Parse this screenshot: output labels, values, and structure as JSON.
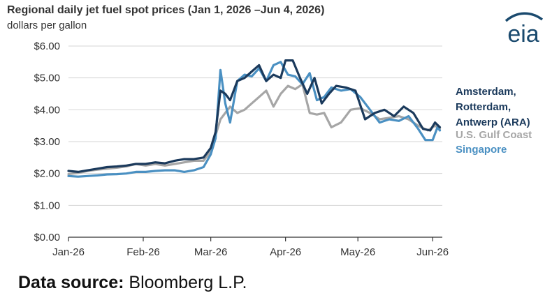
{
  "header": {
    "title": "Regional  daily jet  fuel spot prices (Jan 1, 2026  –Jun 4, 2026)",
    "subtitle": "dollars per gallon"
  },
  "logo": {
    "text": "eia",
    "icon": "eia-logo",
    "color": "#1a4a6e"
  },
  "legend": {
    "ara_lines": [
      "Amsterdam,",
      "Rotterdam,",
      "Antwerp (ARA)"
    ],
    "gulf": "U.S. Gulf Coast",
    "singapore": "Singapore"
  },
  "footer": {
    "label": "Data source:",
    "value": "Bloomberg L.P."
  },
  "chart_data": {
    "type": "line",
    "ylabel": "dollars per gallon",
    "ylim": [
      0,
      6
    ],
    "yticks": [
      0,
      1,
      2,
      3,
      4,
      5,
      6
    ],
    "ytick_labels": [
      "$0.00",
      "$1.00",
      "$2.00",
      "$3.00",
      "$4.00",
      "$5.00",
      "$6.00"
    ],
    "xlim": [
      "2026-01-01",
      "2026-06-05"
    ],
    "xticks": [
      "2026-01-01",
      "2026-02-01",
      "2026-03-01",
      "2026-04-01",
      "2026-05-01",
      "2026-06-01"
    ],
    "xtick_labels": [
      "Jan-26",
      "Feb-26",
      "Mar-26",
      "Apr-26",
      "May-26",
      "Jun-26"
    ],
    "grid": "horizontal",
    "legend": "right",
    "series": [
      {
        "name": "U.S. Gulf Coast",
        "color": "#a6a6a6",
        "x": [
          "2026-01-01",
          "2026-01-05",
          "2026-01-09",
          "2026-01-13",
          "2026-01-17",
          "2026-01-21",
          "2026-01-25",
          "2026-01-29",
          "2026-02-02",
          "2026-02-06",
          "2026-02-10",
          "2026-02-14",
          "2026-02-18",
          "2026-02-22",
          "2026-02-26",
          "2026-03-01",
          "2026-03-03",
          "2026-03-05",
          "2026-03-07",
          "2026-03-09",
          "2026-03-12",
          "2026-03-15",
          "2026-03-18",
          "2026-03-21",
          "2026-03-24",
          "2026-03-27",
          "2026-03-30",
          "2026-04-02",
          "2026-04-05",
          "2026-04-08",
          "2026-04-11",
          "2026-04-14",
          "2026-04-17",
          "2026-04-20",
          "2026-04-24",
          "2026-04-28",
          "2026-05-02",
          "2026-05-06",
          "2026-05-10",
          "2026-05-14",
          "2026-05-18",
          "2026-05-22",
          "2026-05-26",
          "2026-05-30",
          "2026-06-02",
          "2026-06-04"
        ],
        "values": [
          1.98,
          2.02,
          2.08,
          2.12,
          2.15,
          2.18,
          2.22,
          2.3,
          2.25,
          2.3,
          2.25,
          2.3,
          2.35,
          2.4,
          2.4,
          2.7,
          3.2,
          3.7,
          3.9,
          4.1,
          3.9,
          4.0,
          4.2,
          4.4,
          4.6,
          4.1,
          4.5,
          4.75,
          4.65,
          4.8,
          3.9,
          3.85,
          3.9,
          3.45,
          3.6,
          4.0,
          4.05,
          3.9,
          3.7,
          3.75,
          3.8,
          3.7,
          3.5,
          3.35,
          3.5,
          3.4
        ]
      },
      {
        "name": "Singapore",
        "color": "#4a90c2",
        "x": [
          "2026-01-01",
          "2026-01-05",
          "2026-01-09",
          "2026-01-13",
          "2026-01-17",
          "2026-01-21",
          "2026-01-25",
          "2026-01-29",
          "2026-02-02",
          "2026-02-06",
          "2026-02-10",
          "2026-02-14",
          "2026-02-18",
          "2026-02-22",
          "2026-02-26",
          "2026-03-01",
          "2026-03-03",
          "2026-03-05",
          "2026-03-07",
          "2026-03-09",
          "2026-03-12",
          "2026-03-15",
          "2026-03-18",
          "2026-03-21",
          "2026-03-24",
          "2026-03-27",
          "2026-03-30",
          "2026-04-02",
          "2026-04-05",
          "2026-04-08",
          "2026-04-11",
          "2026-04-14",
          "2026-04-17",
          "2026-04-20",
          "2026-04-24",
          "2026-04-28",
          "2026-05-02",
          "2026-05-06",
          "2026-05-10",
          "2026-05-14",
          "2026-05-18",
          "2026-05-22",
          "2026-05-26",
          "2026-05-29",
          "2026-06-01",
          "2026-06-03",
          "2026-06-04"
        ],
        "values": [
          1.92,
          1.9,
          1.92,
          1.94,
          1.97,
          1.98,
          2.0,
          2.05,
          2.05,
          2.08,
          2.1,
          2.1,
          2.05,
          2.1,
          2.2,
          2.6,
          3.1,
          5.25,
          4.2,
          3.6,
          4.9,
          5.1,
          5.05,
          5.3,
          4.9,
          5.4,
          5.5,
          5.1,
          5.05,
          4.8,
          5.15,
          4.3,
          4.4,
          4.7,
          4.6,
          4.65,
          4.4,
          4.0,
          3.6,
          3.7,
          3.65,
          3.8,
          3.4,
          3.05,
          3.05,
          3.45,
          3.35
        ]
      },
      {
        "name": "Amsterdam, Rotterdam, Antwerp (ARA)",
        "color": "#1b3a5c",
        "x": [
          "2026-01-01",
          "2026-01-05",
          "2026-01-09",
          "2026-01-13",
          "2026-01-17",
          "2026-01-21",
          "2026-01-25",
          "2026-01-29",
          "2026-02-02",
          "2026-02-06",
          "2026-02-10",
          "2026-02-14",
          "2026-02-18",
          "2026-02-22",
          "2026-02-26",
          "2026-03-01",
          "2026-03-03",
          "2026-03-05",
          "2026-03-07",
          "2026-03-09",
          "2026-03-12",
          "2026-03-15",
          "2026-03-18",
          "2026-03-21",
          "2026-03-24",
          "2026-03-27",
          "2026-03-30",
          "2026-04-01",
          "2026-04-04",
          "2026-04-07",
          "2026-04-10",
          "2026-04-13",
          "2026-04-16",
          "2026-04-19",
          "2026-04-22",
          "2026-04-26",
          "2026-04-30",
          "2026-05-04",
          "2026-05-08",
          "2026-05-12",
          "2026-05-16",
          "2026-05-20",
          "2026-05-24",
          "2026-05-28",
          "2026-05-31",
          "2026-06-02",
          "2026-06-04"
        ],
        "values": [
          2.08,
          2.05,
          2.1,
          2.15,
          2.2,
          2.22,
          2.25,
          2.3,
          2.3,
          2.35,
          2.32,
          2.4,
          2.45,
          2.45,
          2.5,
          2.8,
          3.3,
          4.6,
          4.5,
          4.3,
          4.9,
          5.0,
          5.2,
          5.4,
          4.9,
          5.1,
          5.0,
          5.55,
          5.55,
          5.0,
          4.5,
          5.0,
          4.2,
          4.5,
          4.75,
          4.7,
          4.6,
          3.7,
          3.9,
          4.0,
          3.8,
          4.1,
          3.9,
          3.4,
          3.35,
          3.6,
          3.45
        ]
      }
    ]
  }
}
